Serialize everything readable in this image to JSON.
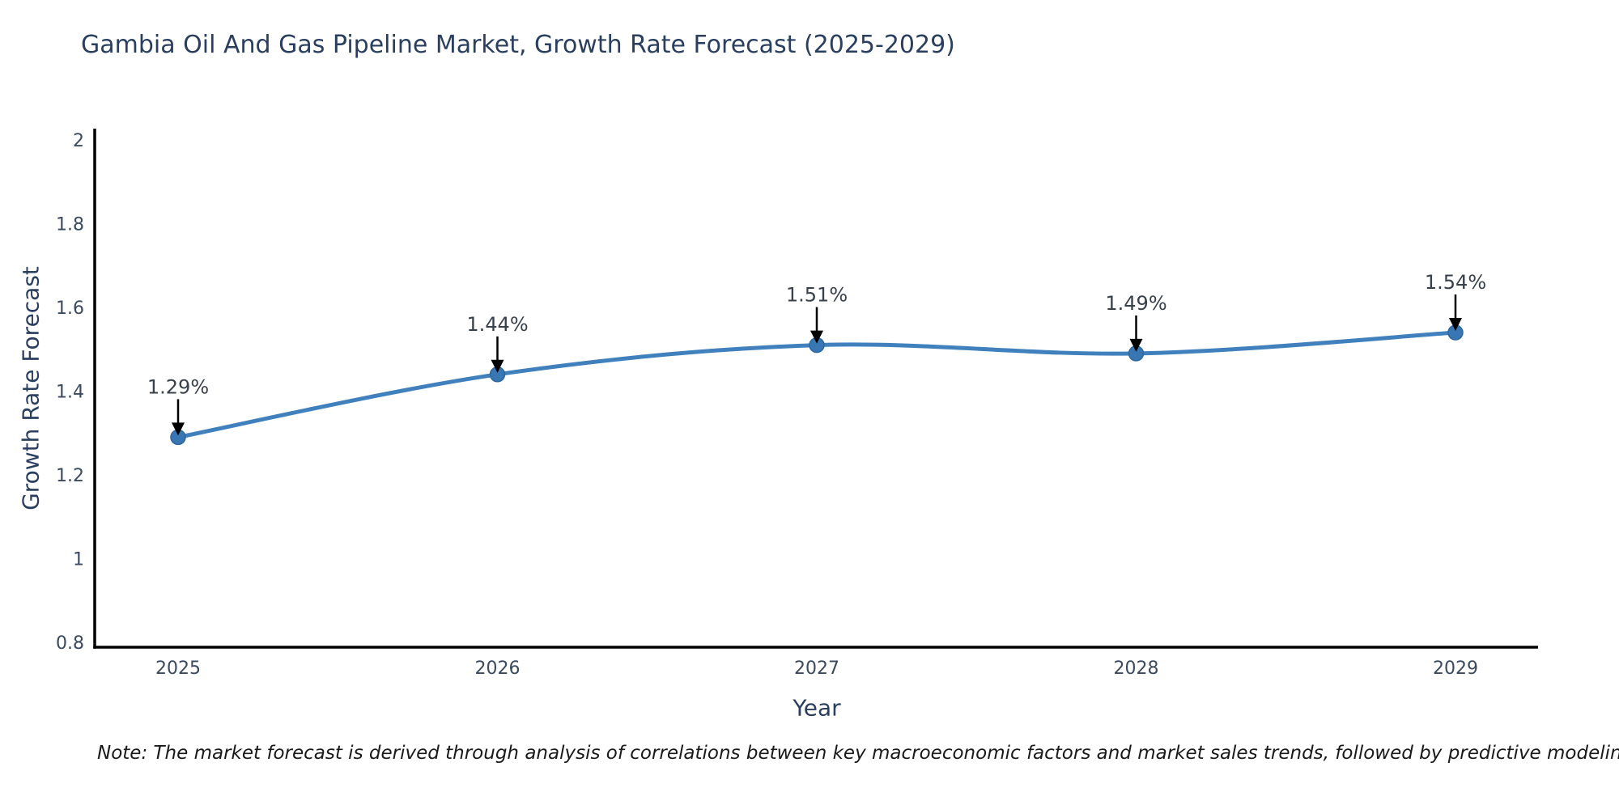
{
  "title": {
    "text": "Gambia Oil And Gas Pipeline Market, Growth Rate Forecast (2025-2029)"
  },
  "chart_data": {
    "type": "line",
    "line_shape": "spline",
    "categories": [
      "2025",
      "2026",
      "2027",
      "2028",
      "2029"
    ],
    "values": [
      1.29,
      1.44,
      1.51,
      1.49,
      1.54
    ],
    "point_labels": [
      "1.29%",
      "1.44%",
      "1.51%",
      "1.49%",
      "1.54%"
    ],
    "title": "Gambia Oil And Gas Pipeline Market, Growth Rate Forecast (2025-2029)",
    "xlabel": "Year",
    "ylabel": "Growth Rate Forecast",
    "ylim": [
      0.8,
      2
    ],
    "ytick_values": [
      0.8,
      1,
      1.2,
      1.4,
      1.6,
      1.8,
      2
    ],
    "ytick_labels": [
      "0.8",
      "1",
      "1.2",
      "1.4",
      "1.6",
      "1.8",
      "2"
    ],
    "grid": false,
    "legend": "none",
    "colors": {
      "line": "#4080bc",
      "marker_fill": "#3876b4",
      "marker_edge": "#2e689f",
      "axis_line": "#000000",
      "arrow": "#000000",
      "tick_label": "#3b4a5f",
      "annotation_text": "#38404b",
      "title_text": "#2a3f5f"
    }
  },
  "note": {
    "text": "Note: The market forecast is derived through analysis of correlations between key macroeconomic factors and market sales trends, followed by predictive modeling to project future sales"
  }
}
